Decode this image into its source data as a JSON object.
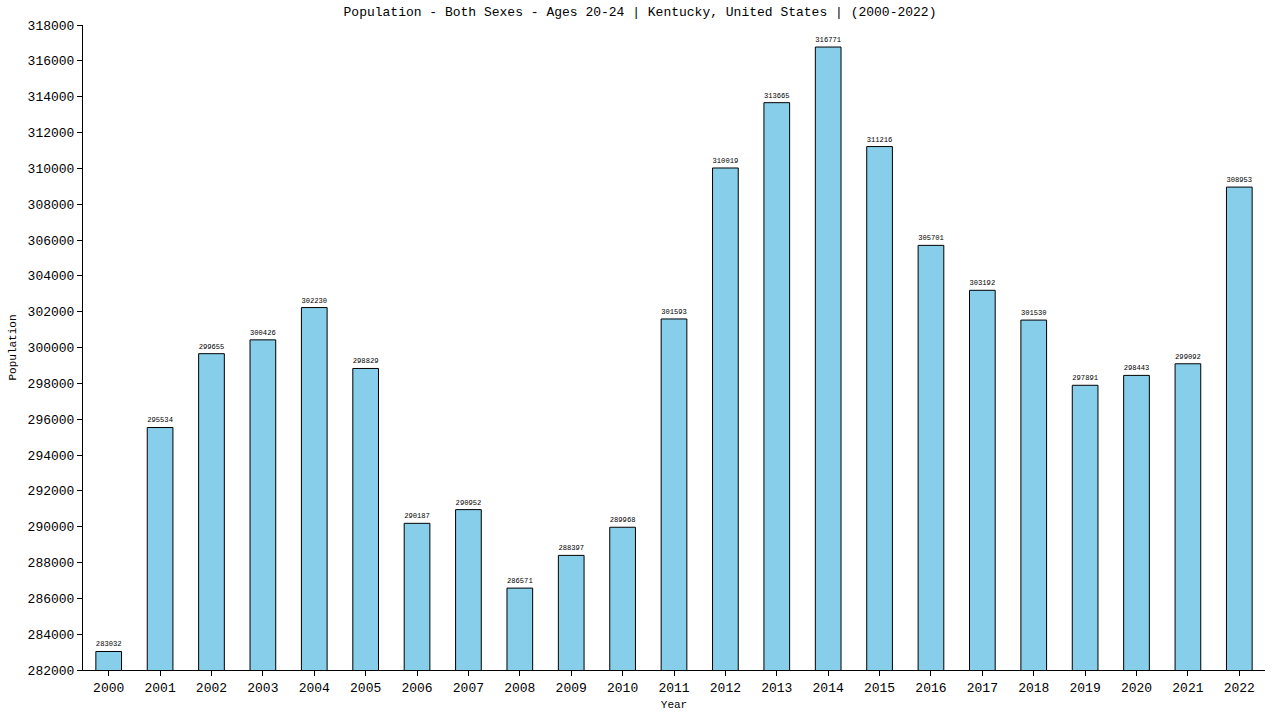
{
  "chart_data": {
    "type": "bar",
    "title": "Population - Both Sexes - Ages 20-24 | Kentucky, United States | (2000-2022)",
    "x_label": "Year",
    "y_label": "Population",
    "categories": [
      "2000",
      "2001",
      "2002",
      "2003",
      "2004",
      "2005",
      "2006",
      "2007",
      "2008",
      "2009",
      "2010",
      "2011",
      "2012",
      "2013",
      "2014",
      "2015",
      "2016",
      "2017",
      "2018",
      "2019",
      "2020",
      "2021",
      "2022"
    ],
    "values": [
      283032,
      295534,
      299655,
      300426,
      302230,
      298829,
      290187,
      290952,
      286571,
      288397,
      289968,
      301593,
      310019,
      313665,
      316771,
      311216,
      305701,
      303192,
      301530,
      297891,
      298443,
      299092,
      308953
    ],
    "color": "#87ceeb",
    "ylim": [
      282000,
      318000
    ],
    "yticks": [
      282000,
      284000,
      286000,
      288000,
      290000,
      292000,
      294000,
      296000,
      298000,
      300000,
      302000,
      304000,
      306000,
      308000,
      310000,
      312000,
      314000,
      316000,
      318000
    ],
    "grid": false,
    "data_labels": true
  }
}
